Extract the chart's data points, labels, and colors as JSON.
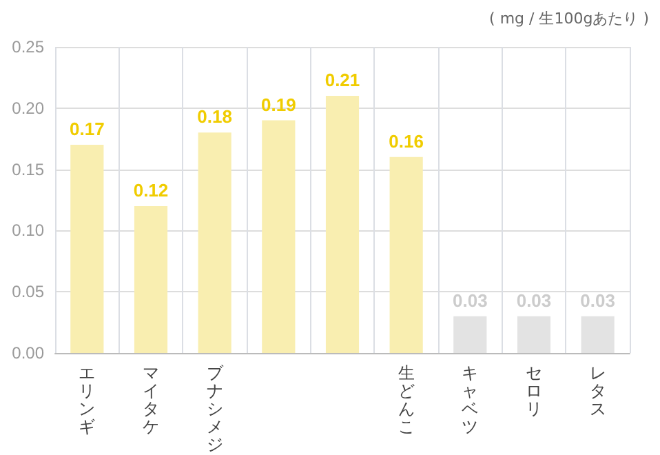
{
  "chart_data": {
    "type": "bar",
    "annotations": [
      "( mg / 生100gあたり )"
    ],
    "categories": [
      "エリンギ",
      "マイタケ",
      "ブナシメジ",
      null,
      null,
      "生どんこ",
      "キャベツ",
      "セロリ",
      "レタス"
    ],
    "values": [
      0.17,
      0.12,
      0.18,
      0.19,
      0.21,
      0.16,
      0.03,
      0.03,
      0.03
    ],
    "colors": [
      "#f9eeb0",
      "#f9eeb0",
      "#f9eeb0",
      "#f9eeb0",
      "#f9eeb0",
      "#f9eeb0",
      "#e3e3e3",
      "#e3e3e3",
      "#e3e3e3"
    ],
    "ylim": [
      0,
      0.25
    ],
    "yticks": [
      {
        "value": 0,
        "label": "0.00"
      },
      {
        "value": 0.05,
        "label": "0.05"
      },
      {
        "value": 0.1,
        "label": "0.10"
      },
      {
        "value": 0.15,
        "label": "0.15"
      },
      {
        "value": 0.2,
        "label": "0.20"
      },
      {
        "value": 0.25,
        "label": "0.25"
      }
    ],
    "grid": true,
    "data_labels": true
  }
}
